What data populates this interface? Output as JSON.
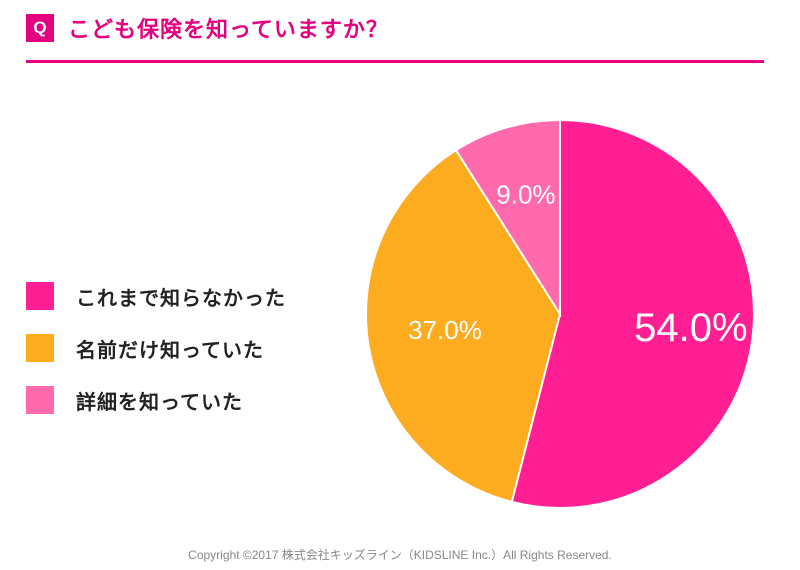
{
  "header": {
    "badge": "Q",
    "question": "こども保険を知っていますか？"
  },
  "colors": {
    "accent": "#e4007f"
  },
  "chart_data": {
    "type": "pie",
    "title": "こども保険を知っていますか？",
    "start_angle_deg": 0,
    "direction": "clockwise",
    "slices": [
      {
        "label": "これまで知らなかった",
        "value": 54.0,
        "display": "54.0%",
        "color": "#ff1f93"
      },
      {
        "label": "名前だけ知っていた",
        "value": 37.0,
        "display": "37.0%",
        "color": "#fdab1f"
      },
      {
        "label": "詳細を知っていた",
        "value": 9.0,
        "display": "9.0%",
        "color": "#ff6aad"
      }
    ],
    "legend_position": "left"
  },
  "footer": {
    "copyright": "Copyright ©2017 株式会社キッズライン（KIDSLINE Inc.）All Rights Reserved."
  }
}
